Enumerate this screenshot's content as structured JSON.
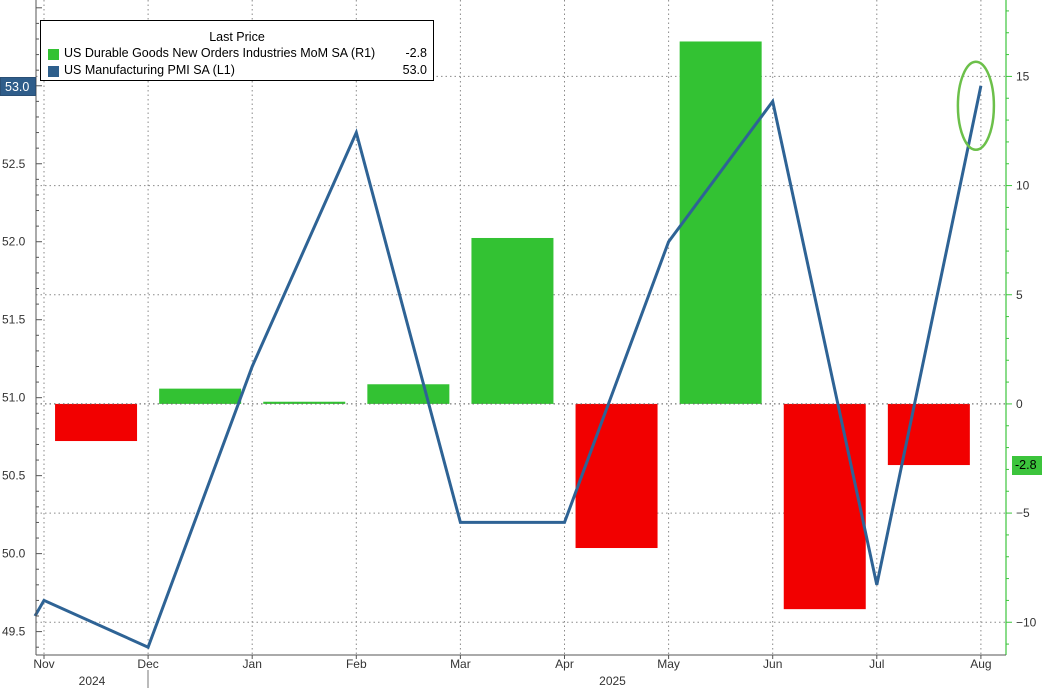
{
  "chart_data": {
    "type": "bar+line",
    "legend": {
      "header": "Last Price",
      "placement": "top-left",
      "entries": [
        {
          "name": "US Durable Goods New Orders Industries MoM SA  (R1)",
          "value": "-2.8",
          "color": "#33c233"
        },
        {
          "name": "US Manufacturing PMI SA  (L1)",
          "value": "53.0",
          "color": "#2e5f8c"
        }
      ]
    },
    "categories": [
      "Nov",
      "Dec",
      "Jan",
      "Feb",
      "Mar",
      "Apr",
      "May",
      "Jun",
      "Jul",
      "Aug"
    ],
    "year_labels": [
      {
        "text": "2024",
        "month": "Nov"
      },
      {
        "text": "2025",
        "month": "Apr"
      }
    ],
    "bars": {
      "name": "US Durable Goods New Orders Industries MoM SA",
      "axis": "right",
      "positive_color": "#33c233",
      "negative_color": "#f20000",
      "values": [
        -1.7,
        0.7,
        0.1,
        0.9,
        7.6,
        -6.6,
        16.6,
        -9.4,
        -2.8,
        null
      ]
    },
    "line": {
      "name": "US Manufacturing PMI SA",
      "axis": "left",
      "color": "#2e6395",
      "values": [
        49.7,
        49.4,
        51.2,
        52.7,
        50.2,
        50.2,
        52.0,
        52.9,
        49.8,
        53.0
      ]
    },
    "line_start_value": 49.6,
    "left_axis": {
      "ylim": [
        49.35,
        53.55
      ],
      "ticks": [
        "49.5",
        "50.0",
        "50.5",
        "51.0",
        "51.5",
        "52.0",
        "52.5",
        "53.0"
      ]
    },
    "right_axis": {
      "ylim": [
        -11.5,
        18.5
      ],
      "ticks": [
        "-10",
        "-5",
        "0",
        "5",
        "10",
        "15"
      ],
      "color": "#3cc43c"
    },
    "last_value_tags": {
      "left": "53.0",
      "right": "-2.8"
    },
    "annotation": {
      "type": "ellipse",
      "color": "#6cc04a",
      "target": "Aug"
    },
    "grid": true
  }
}
